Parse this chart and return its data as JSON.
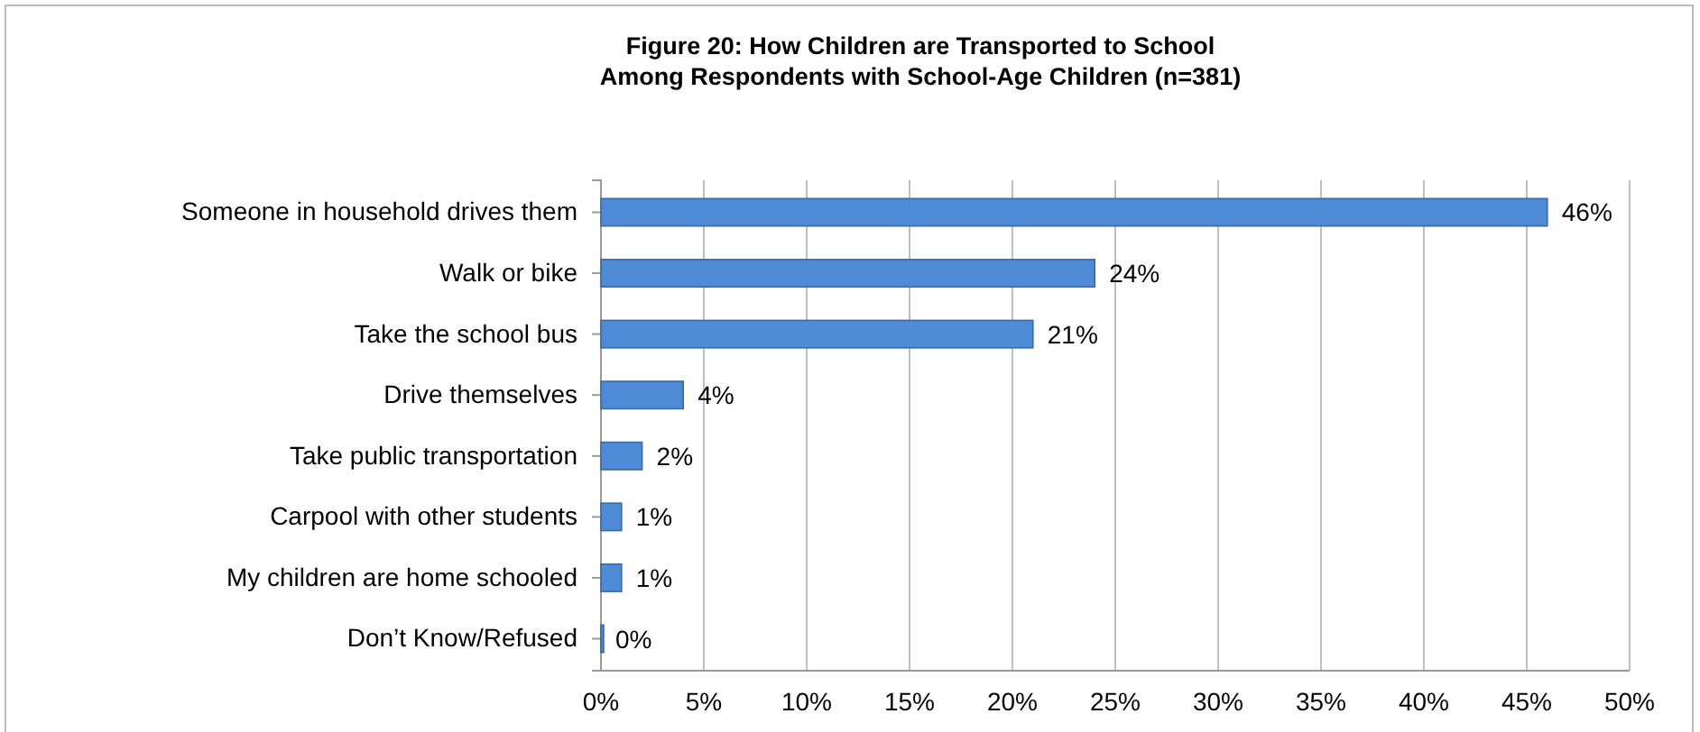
{
  "chart_data": {
    "type": "bar",
    "orientation": "horizontal",
    "title": "Figure 20: How Children are Transported to School\nAmong Respondents with School-Age Children (n=381)",
    "categories": [
      "Someone in household drives them",
      "Walk or bike",
      "Take the school bus",
      "Drive themselves",
      "Take public transportation",
      "Carpool with other students",
      "My children are home schooled",
      "Don’t Know/Refused"
    ],
    "values": [
      46,
      24,
      21,
      4,
      2,
      1,
      1,
      0
    ],
    "value_labels": [
      "46%",
      "24%",
      "21%",
      "4%",
      "2%",
      "1%",
      "1%",
      "0%"
    ],
    "color": "#4f8ad6",
    "xlim": [
      0,
      50
    ],
    "xticks": [
      {
        "value": 0,
        "label": "0%"
      },
      {
        "value": 5,
        "label": "5%"
      },
      {
        "value": 10,
        "label": "10%"
      },
      {
        "value": 15,
        "label": "15%"
      },
      {
        "value": 20,
        "label": "20%"
      },
      {
        "value": 25,
        "label": "25%"
      },
      {
        "value": 30,
        "label": "30%"
      },
      {
        "value": 35,
        "label": "35%"
      },
      {
        "value": 40,
        "label": "40%"
      },
      {
        "value": 45,
        "label": "45%"
      },
      {
        "value": 50,
        "label": "50%"
      }
    ],
    "grid": "x"
  }
}
